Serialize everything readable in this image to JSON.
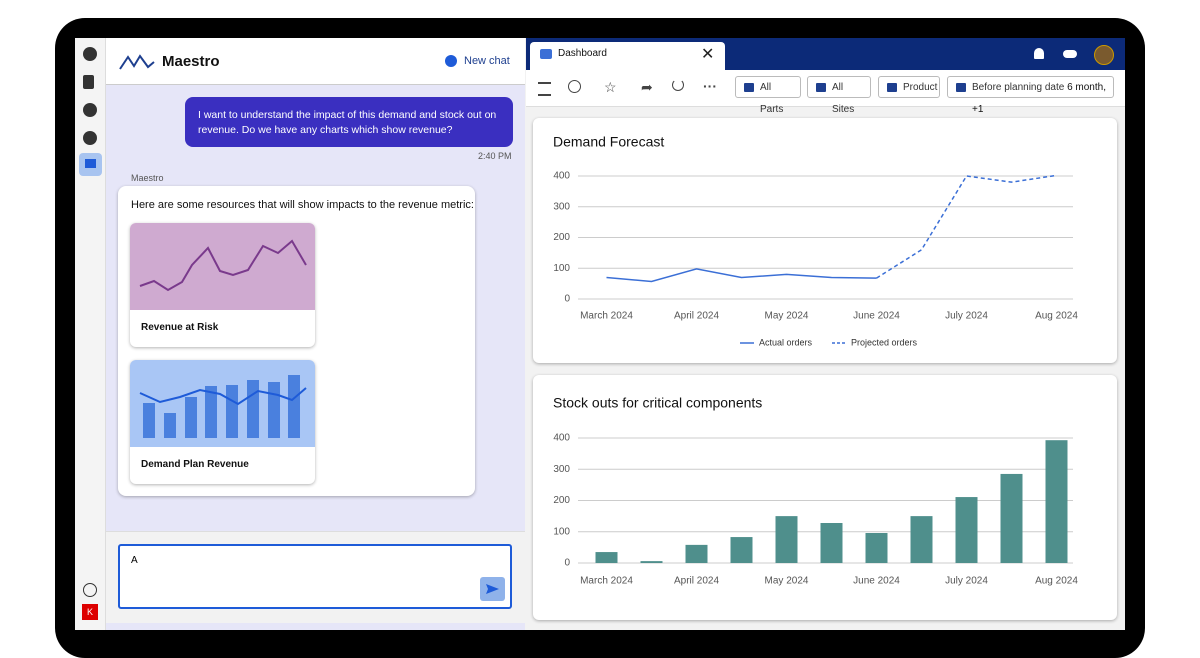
{
  "app": {
    "name": "Maestro",
    "new_chat": "New chat"
  },
  "chat": {
    "user_message": "I want to understand the impact of this demand and stock out on revenue. Do we have any charts which show revenue?",
    "time": "2:40 PM",
    "sender": "Maestro",
    "reply": "Here are some resources that will show impacts to the revenue metric:",
    "cards": [
      "Revenue at Risk",
      "Demand Plan Revenue"
    ],
    "input": "A"
  },
  "dashboard": {
    "tab": "Dashboard",
    "filters": [
      "All Parts",
      "All Sites",
      "Product"
    ],
    "date_filter": "Before planning date",
    "date_value": "6 month, +1"
  },
  "chart_data": [
    {
      "type": "line",
      "title": "Demand Forecast",
      "categories": [
        "March 2024",
        null,
        "April 2024",
        null,
        "May 2024",
        null,
        "June 2024",
        null,
        "July 2024",
        null,
        "Aug 2024"
      ],
      "series": [
        {
          "name": "Actual orders",
          "color": "#3b6fd6",
          "values": [
            70,
            57,
            98,
            70,
            80,
            70,
            68,
            null,
            null,
            null,
            null
          ]
        },
        {
          "name": "Projected orders",
          "color": "#3b6fd6",
          "dashed": true,
          "values": [
            null,
            null,
            null,
            null,
            null,
            null,
            68,
            160,
            400,
            380,
            402
          ]
        }
      ],
      "ylim": [
        0,
        400
      ],
      "yticks": [
        0,
        100,
        200,
        300,
        400
      ],
      "grid": true,
      "legend": "bottom"
    },
    {
      "type": "bar",
      "title": "Stock outs for critical components",
      "categories": [
        "March 2024",
        null,
        "April 2024",
        null,
        "May 2024",
        null,
        "June 2024",
        null,
        "July 2024",
        null,
        "Aug 2024"
      ],
      "values": [
        35,
        6,
        58,
        83,
        150,
        128,
        96,
        150,
        211,
        285,
        393
      ],
      "color": "#4f8f8c",
      "ylim": [
        0,
        400
      ],
      "yticks": [
        0,
        100,
        200,
        300,
        400
      ],
      "grid": true
    }
  ]
}
